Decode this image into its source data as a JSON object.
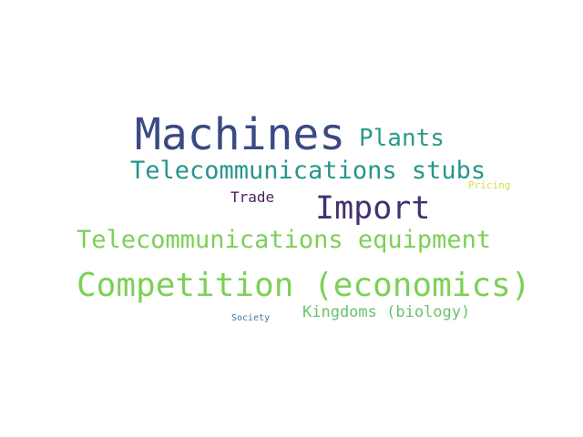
{
  "words": [
    {
      "text": "Machines",
      "color": "#3b4a84"
    },
    {
      "text": "Plants",
      "color": "#2a9a8a"
    },
    {
      "text": "Telecommunications stubs",
      "color": "#27958c"
    },
    {
      "text": "Pricing",
      "color": "#d3e04a"
    },
    {
      "text": "Trade",
      "color": "#4a1f5a"
    },
    {
      "text": "Import",
      "color": "#43306e"
    },
    {
      "text": "Telecommunications equipment",
      "color": "#7ccf58"
    },
    {
      "text": "Competition (economics)",
      "color": "#7dd056"
    },
    {
      "text": "Kingdoms (biology)",
      "color": "#68c26a"
    },
    {
      "text": "Society",
      "color": "#3c78a8"
    }
  ]
}
